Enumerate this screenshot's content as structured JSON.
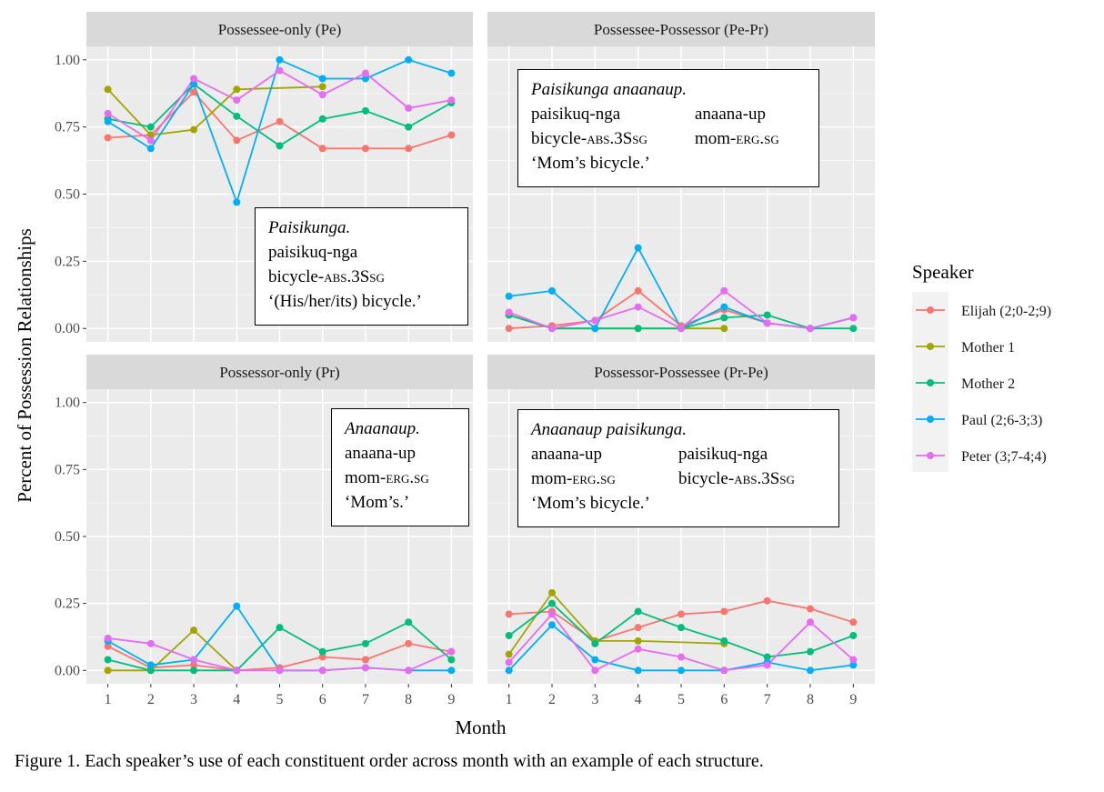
{
  "chart_data": {
    "type": "line",
    "xlabel": "Month",
    "ylabel": "Percent of Possession Relationships",
    "x": [
      1,
      2,
      3,
      4,
      5,
      6,
      7,
      8,
      9
    ],
    "x_ticks": [
      "1",
      "2",
      "3",
      "4",
      "5",
      "6",
      "7",
      "8",
      "9"
    ],
    "y_ticks": [
      "0.00",
      "0.25",
      "0.50",
      "0.75",
      "1.00"
    ],
    "ylim": [
      0,
      1.05
    ],
    "grid": true,
    "legend": {
      "title": "Speaker",
      "position": "right",
      "entries": [
        {
          "name": "Elijah (2;0-2;9)",
          "color": "#F8766D"
        },
        {
          "name": "Mother 1",
          "color": "#A3A500"
        },
        {
          "name": "Mother 2",
          "color": "#00BF7D"
        },
        {
          "name": "Paul (2;6-3;3)",
          "color": "#00B0F6"
        },
        {
          "name": "Peter (3;7-4;4)",
          "color": "#E76BF3"
        }
      ]
    },
    "panels": [
      {
        "title": "Possessee-only (Pe)",
        "series": [
          {
            "name": "Elijah (2;0-2;9)",
            "color": "#F8766D",
            "x": [
              1,
              2,
              3,
              4,
              5,
              6,
              7,
              8,
              9
            ],
            "values": [
              0.71,
              0.72,
              0.88,
              0.7,
              0.77,
              0.67,
              0.67,
              0.67,
              0.72
            ]
          },
          {
            "name": "Mother 1",
            "color": "#A3A500",
            "x": [
              1,
              2,
              3,
              4,
              6
            ],
            "values": [
              0.89,
              0.72,
              0.74,
              0.89,
              0.9
            ]
          },
          {
            "name": "Mother 2",
            "color": "#00BF7D",
            "x": [
              1,
              2,
              3,
              4,
              5,
              6,
              7,
              8,
              9
            ],
            "values": [
              0.78,
              0.75,
              0.91,
              0.79,
              0.68,
              0.78,
              0.81,
              0.75,
              0.84
            ]
          },
          {
            "name": "Paul (2;6-3;3)",
            "color": "#00B0F6",
            "x": [
              1,
              2,
              3,
              4,
              5,
              6,
              7,
              8,
              9
            ],
            "values": [
              0.77,
              0.67,
              0.91,
              0.47,
              1.0,
              0.93,
              0.93,
              1.0,
              0.95
            ]
          },
          {
            "name": "Peter (3;7-4;4)",
            "color": "#E76BF3",
            "x": [
              1,
              2,
              3,
              4,
              5,
              6,
              7,
              8,
              9
            ],
            "values": [
              0.8,
              0.7,
              0.93,
              0.85,
              0.96,
              0.87,
              0.95,
              0.82,
              0.85
            ]
          }
        ]
      },
      {
        "title": "Possessee-Possessor (Pe-Pr)",
        "series": [
          {
            "name": "Elijah (2;0-2;9)",
            "color": "#F8766D",
            "x": [
              1,
              2,
              3,
              4,
              5,
              6,
              7,
              8,
              9
            ],
            "values": [
              0.0,
              0.01,
              0.03,
              0.14,
              0.01,
              0.07,
              0.02,
              0.0,
              0.04
            ]
          },
          {
            "name": "Mother 1",
            "color": "#A3A500",
            "x": [
              1,
              2,
              3,
              4,
              5,
              6
            ],
            "values": [
              0.05,
              0.0,
              0.0,
              0.0,
              0.0,
              0.0
            ]
          },
          {
            "name": "Mother 2",
            "color": "#00BF7D",
            "x": [
              1,
              2,
              3,
              4,
              5,
              6,
              7,
              8,
              9
            ],
            "values": [
              0.05,
              0.0,
              0.0,
              0.0,
              0.0,
              0.04,
              0.05,
              0.0,
              0.0
            ]
          },
          {
            "name": "Paul (2;6-3;3)",
            "color": "#00B0F6",
            "x": [
              1,
              2,
              3,
              4,
              5,
              6,
              7,
              8,
              9
            ],
            "values": [
              0.12,
              0.14,
              0.0,
              0.3,
              0.0,
              0.08,
              0.02,
              0.0,
              0.04
            ]
          },
          {
            "name": "Peter (3;7-4;4)",
            "color": "#E76BF3",
            "x": [
              1,
              2,
              3,
              4,
              5,
              6,
              7,
              8,
              9
            ],
            "values": [
              0.06,
              0.0,
              0.03,
              0.08,
              0.0,
              0.14,
              0.02,
              0.0,
              0.04
            ]
          }
        ]
      },
      {
        "title": "Possessor-only (Pr)",
        "series": [
          {
            "name": "Elijah (2;0-2;9)",
            "color": "#F8766D",
            "x": [
              1,
              2,
              3,
              4,
              5,
              6,
              7,
              8,
              9
            ],
            "values": [
              0.09,
              0.01,
              0.02,
              0.0,
              0.01,
              0.05,
              0.04,
              0.1,
              0.07
            ]
          },
          {
            "name": "Mother 1",
            "color": "#A3A500",
            "x": [
              1,
              2,
              3,
              4
            ],
            "values": [
              0.0,
              0.0,
              0.15,
              0.0
            ]
          },
          {
            "name": "Mother 2",
            "color": "#00BF7D",
            "x": [
              1,
              2,
              3,
              4,
              5,
              6,
              7,
              8,
              9
            ],
            "values": [
              0.04,
              0.0,
              0.0,
              0.0,
              0.16,
              0.07,
              0.1,
              0.18,
              0.04
            ]
          },
          {
            "name": "Paul (2;6-3;3)",
            "color": "#00B0F6",
            "x": [
              1,
              2,
              3,
              4,
              5,
              6,
              7,
              8,
              9
            ],
            "values": [
              0.11,
              0.02,
              0.04,
              0.24,
              0.0,
              0.0,
              0.01,
              0.0,
              0.0
            ]
          },
          {
            "name": "Peter (3;7-4;4)",
            "color": "#E76BF3",
            "x": [
              1,
              2,
              3,
              4,
              5,
              6,
              7,
              8,
              9
            ],
            "values": [
              0.12,
              0.1,
              0.04,
              0.0,
              0.0,
              0.0,
              0.01,
              0.0,
              0.07
            ]
          }
        ]
      },
      {
        "title": "Possessor-Possessee (Pr-Pe)",
        "series": [
          {
            "name": "Elijah (2;0-2;9)",
            "color": "#F8766D",
            "x": [
              1,
              2,
              3,
              4,
              5,
              6,
              7,
              8,
              9
            ],
            "values": [
              0.21,
              0.22,
              0.11,
              0.16,
              0.21,
              0.22,
              0.26,
              0.23,
              0.18
            ]
          },
          {
            "name": "Mother 1",
            "color": "#A3A500",
            "x": [
              1,
              2,
              3,
              4,
              6
            ],
            "values": [
              0.06,
              0.29,
              0.11,
              0.11,
              0.1
            ]
          },
          {
            "name": "Mother 2",
            "color": "#00BF7D",
            "x": [
              1,
              2,
              3,
              4,
              5,
              6,
              7,
              8,
              9
            ],
            "values": [
              0.13,
              0.25,
              0.1,
              0.22,
              0.16,
              0.11,
              0.05,
              0.07,
              0.13
            ]
          },
          {
            "name": "Paul (2;6-3;3)",
            "color": "#00B0F6",
            "x": [
              1,
              2,
              3,
              4,
              5,
              6,
              7,
              8,
              9
            ],
            "values": [
              0.0,
              0.17,
              0.04,
              0.0,
              0.0,
              0.0,
              0.03,
              0.0,
              0.02
            ]
          },
          {
            "name": "Peter (3;7-4;4)",
            "color": "#E76BF3",
            "x": [
              1,
              2,
              3,
              4,
              5,
              6,
              7,
              8,
              9
            ],
            "values": [
              0.03,
              0.21,
              0.0,
              0.08,
              0.05,
              0.0,
              0.02,
              0.18,
              0.04
            ]
          }
        ]
      }
    ]
  },
  "examples": [
    {
      "title": "Paisikunga.",
      "lines": [
        {
          "text": "paisikuq-nga"
        },
        {
          "pre": "bicycle-",
          "sc": "abs.3Ssg"
        },
        {
          "text": "‘(His/her/its) bicycle.’"
        }
      ]
    },
    {
      "title": "Paisikunga anaanaup.",
      "rows": [
        {
          "c1": {
            "text": "paisikuq-nga"
          },
          "c2": {
            "text": "anaana-up"
          }
        },
        {
          "c1": {
            "pre": "bicycle-",
            "sc": "abs.3Ssg"
          },
          "c2": {
            "pre": "mom-",
            "sc": "erg.sg"
          }
        }
      ],
      "gloss": "‘Mom’s bicycle.’"
    },
    {
      "title": "Anaanaup.",
      "lines": [
        {
          "text": "anaana-up"
        },
        {
          "pre": "mom-",
          "sc": "erg.sg"
        },
        {
          "text": "‘Mom’s.’"
        }
      ]
    },
    {
      "title": "Anaanaup paisikunga.",
      "rows": [
        {
          "c1": {
            "text": "anaana-up"
          },
          "c2": {
            "text": "paisikuq-nga"
          }
        },
        {
          "c1": {
            "pre": "mom-",
            "sc": "erg.sg"
          },
          "c2": {
            "pre": "bicycle-",
            "sc": "abs.3Ssg"
          }
        }
      ],
      "gloss": "‘Mom’s bicycle.’"
    }
  ],
  "caption": "Figure 1. Each speaker’s use of each constituent order across month with an example of each structure."
}
